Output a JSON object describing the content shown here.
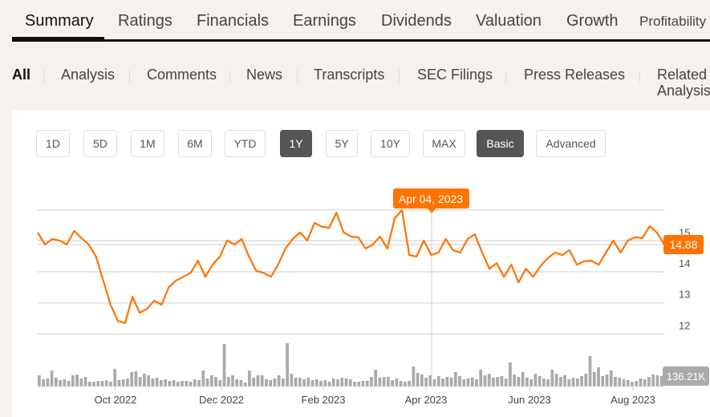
{
  "tabs": [
    "Summary",
    "Ratings",
    "Financials",
    "Earnings",
    "Dividends",
    "Valuation",
    "Growth",
    "Profitability"
  ],
  "active_tab": "Summary",
  "subnav": [
    "All",
    "Analysis",
    "Comments",
    "News",
    "Transcripts",
    "SEC Filings",
    "Press Releases",
    "Related Analysis"
  ],
  "ranges": [
    "1D",
    "5D",
    "1M",
    "6M",
    "YTD",
    "1Y",
    "5Y",
    "10Y",
    "MAX"
  ],
  "active_range": "1Y",
  "modes": [
    "Basic",
    "Advanced"
  ],
  "active_mode": "Basic",
  "colors": {
    "accent": "#ff7300",
    "volume": "#aaaaaa",
    "selected_button": "#555555"
  },
  "chart_data": {
    "type": "line",
    "title": "",
    "ylim": [
      11.5,
      16
    ],
    "y_ticks": [
      "12",
      "13",
      "14",
      "15"
    ],
    "x_ticks": [
      "Oct 2022",
      "Dec 2022",
      "Feb 2023",
      "Apr 2023",
      "Jun 2023",
      "Aug 2023"
    ],
    "tooltip_date": "Apr 04, 2023",
    "last_price": "14.88",
    "last_volume": "136.21K",
    "price": [
      15.27,
      14.88,
      15.06,
      15.01,
      14.88,
      15.32,
      15.09,
      14.88,
      14.49,
      13.72,
      12.94,
      12.42,
      12.35,
      13.2,
      12.68,
      12.81,
      13.07,
      12.94,
      13.51,
      13.72,
      13.84,
      13.97,
      14.36,
      13.84,
      14.23,
      14.49,
      15.01,
      14.88,
      15.06,
      14.49,
      14.03,
      13.97,
      13.84,
      14.23,
      14.75,
      15.06,
      15.27,
      15.01,
      15.58,
      15.45,
      15.42,
      15.91,
      15.27,
      15.14,
      15.11,
      14.75,
      14.88,
      15.14,
      14.75,
      15.73,
      15.99,
      14.54,
      14.49,
      15.01,
      14.54,
      14.62,
      15.06,
      14.7,
      14.62,
      15.06,
      15.21,
      14.62,
      14.1,
      14.28,
      13.84,
      14.23,
      13.66,
      14.1,
      13.84,
      14.18,
      14.44,
      14.62,
      14.54,
      14.7,
      14.23,
      14.34,
      14.36,
      14.23,
      14.62,
      15.01,
      14.62,
      15.01,
      15.11,
      15.09,
      15.47,
      15.27,
      14.88
    ],
    "volume_k": [
      140,
      90,
      100,
      200,
      110,
      80,
      90,
      70,
      140,
      150,
      100,
      120,
      60,
      60,
      70,
      70,
      80,
      60,
      220,
      80,
      90,
      100,
      180,
      190,
      120,
      160,
      140,
      100,
      110,
      80,
      90,
      70,
      80,
      60,
      70,
      70,
      60,
      90,
      80,
      200,
      100,
      140,
      120,
      80,
      530,
      120,
      140,
      90,
      80,
      50,
      200,
      110,
      140,
      140,
      90,
      80,
      100,
      140,
      100,
      540,
      160,
      110,
      110,
      90,
      110,
      80,
      90,
      70,
      80,
      60,
      100,
      90,
      110,
      100,
      90,
      60,
      60,
      70,
      70,
      120,
      210,
      110,
      120,
      120,
      80,
      100,
      70,
      60,
      70,
      250,
      170,
      150,
      110,
      140,
      90,
      130,
      100,
      120,
      110,
      180,
      130,
      90,
      100,
      110,
      90,
      210,
      140,
      160,
      110,
      120,
      130,
      100,
      300,
      150,
      120,
      180,
      110,
      90,
      160,
      130,
      100,
      90,
      210,
      160,
      120,
      140,
      90,
      110,
      100,
      130,
      160,
      380,
      180,
      240,
      130,
      150,
      200,
      120,
      110,
      90,
      80,
      60,
      70,
      100,
      90,
      120,
      150,
      140,
      130
    ]
  }
}
